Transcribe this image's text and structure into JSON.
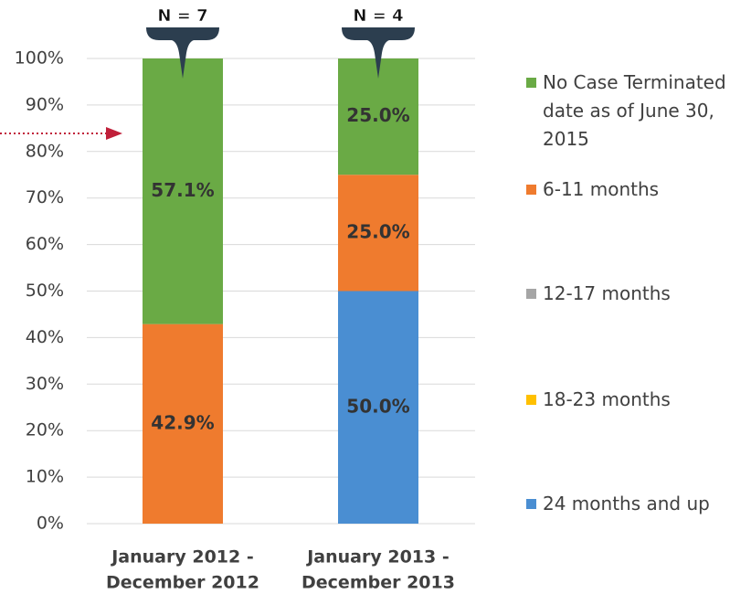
{
  "chart_data": {
    "type": "stacked_bar",
    "categories": [
      [
        "January 2012 -",
        "December 2012"
      ],
      [
        "January 2013 -",
        "December 2013"
      ]
    ],
    "annotations": [
      "N = 7",
      "N = 4"
    ],
    "series": [
      {
        "name": "24 months and up",
        "color": "#4a8ed2",
        "values": [
          0,
          50.0
        ],
        "value_labels": [
          null,
          "50.0%"
        ]
      },
      {
        "name": "18-23 months",
        "color": "#ffc000",
        "values": [
          0,
          0
        ]
      },
      {
        "name": "12-17 months",
        "color": "#a5a5a5",
        "values": [
          0,
          0
        ]
      },
      {
        "name": "6-11 months",
        "color": "#ef7b2e",
        "values": [
          42.9,
          25.0
        ],
        "value_labels": [
          "42.9%",
          "25.0%"
        ]
      },
      {
        "name": "No Case Terminated date as of June 30, 2015",
        "color": "#6aaa45",
        "values": [
          57.1,
          25.0
        ],
        "value_labels": [
          "57.1%",
          "25.0%"
        ]
      }
    ],
    "ylim": [
      0,
      100
    ],
    "yticks": [
      {
        "value": 0,
        "label": "0%"
      },
      {
        "value": 10,
        "label": "10%"
      },
      {
        "value": 20,
        "label": "20%"
      },
      {
        "value": 30,
        "label": "30%"
      },
      {
        "value": 40,
        "label": "40%"
      },
      {
        "value": 50,
        "label": "50%"
      },
      {
        "value": 60,
        "label": "60%"
      },
      {
        "value": 70,
        "label": "70%"
      },
      {
        "value": 80,
        "label": "80%"
      },
      {
        "value": 90,
        "label": "90%"
      },
      {
        "value": 100,
        "label": "100%"
      }
    ],
    "grid": true,
    "legend": "right"
  }
}
